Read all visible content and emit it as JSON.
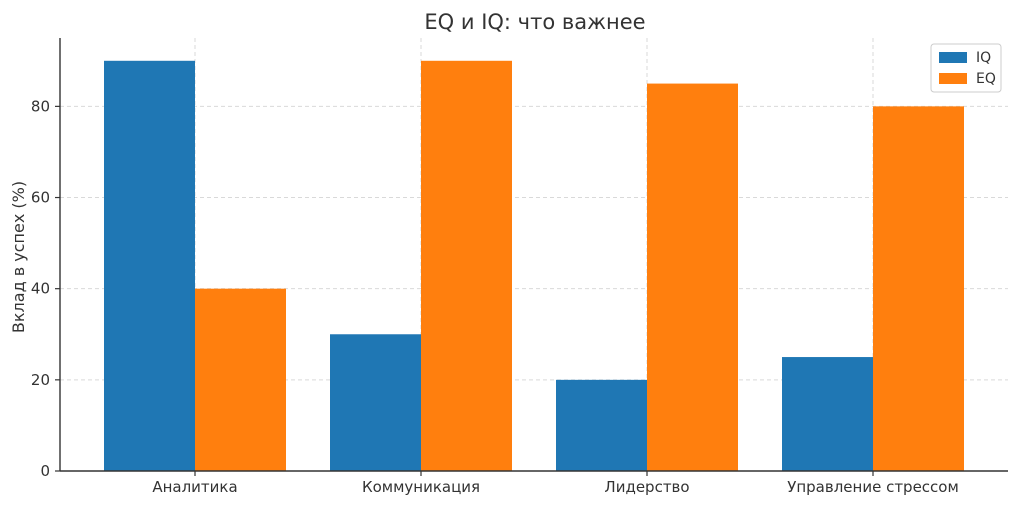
{
  "chart_data": {
    "type": "bar",
    "title": "EQ и IQ: что важнее",
    "xlabel": "",
    "ylabel": "Вклад в успех (%)",
    "categories": [
      "Аналитика",
      "Коммуникация",
      "Лидерство",
      "Управление стрессом"
    ],
    "series": [
      {
        "name": "IQ",
        "values": [
          90,
          30,
          20,
          25
        ],
        "color": "#1f77b4"
      },
      {
        "name": "EQ",
        "values": [
          40,
          90,
          85,
          80
        ],
        "color": "#ff7f0e"
      }
    ],
    "ylim": [
      0,
      95
    ],
    "yticks": [
      0,
      20,
      40,
      60,
      80
    ],
    "grid": true,
    "legend_position": "top-right"
  }
}
